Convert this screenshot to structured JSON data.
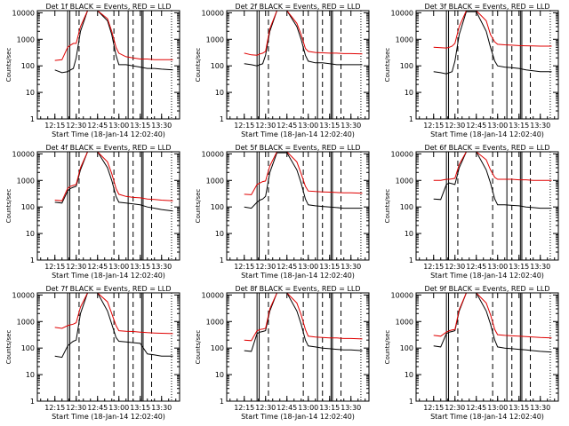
{
  "figure": {
    "colors": {
      "events": "#000000",
      "lld": "#e00000",
      "axis": "#000000"
    },
    "time_tick_labels": [
      "12:15",
      "12:30",
      "12:45",
      "13:00",
      "13:15",
      "13:30"
    ],
    "ylabel": "Counts/sec",
    "y_tick_labels": [
      "1",
      "10",
      "100",
      "1000",
      "10000"
    ]
  },
  "chart_data": [
    {
      "type": "line",
      "title": "Det 1f  BLACK = Events, RED = LLD",
      "xlabel": "Start Time (18-Jan-14 12:02:40)",
      "ylabel": "Counts/sec",
      "y_scale": "log",
      "ylim": [
        1,
        12000
      ],
      "xlim": [
        "12:02:40",
        "13:42:40"
      ],
      "x": [
        "12:15",
        "12:20",
        "12:24",
        "12:26",
        "12:28",
        "12:30",
        "12:33",
        "12:38",
        "12:45",
        "12:52",
        "12:55",
        "12:58",
        "13:00",
        "13:05",
        "13:10",
        "13:15",
        "13:20",
        "13:25",
        "13:30",
        "13:38"
      ],
      "series": [
        {
          "name": "Events",
          "values": [
            70,
            55,
            60,
            70,
            80,
            200,
            2000,
            12000,
            12000,
            5000,
            1500,
            250,
            110,
            110,
            100,
            90,
            80,
            80,
            75,
            70
          ]
        },
        {
          "name": "LLD",
          "values": [
            160,
            170,
            500,
            600,
            700,
            700,
            3000,
            12000,
            12000,
            6000,
            2000,
            500,
            300,
            220,
            200,
            180,
            180,
            170,
            170,
            170
          ]
        }
      ]
    },
    {
      "type": "line",
      "title": "Det 2f  BLACK = Events, RED = LLD",
      "xlabel": "Start Time (18-Jan-14 12:02:40)",
      "ylabel": "Counts/sec",
      "y_scale": "log",
      "ylim": [
        1,
        12000
      ],
      "xlim": [
        "12:02:40",
        "13:42:40"
      ],
      "x": [
        "12:15",
        "12:20",
        "12:24",
        "12:26",
        "12:28",
        "12:30",
        "12:33",
        "12:38",
        "12:45",
        "12:52",
        "12:55",
        "12:58",
        "13:00",
        "13:05",
        "13:10",
        "13:15",
        "13:20",
        "13:25",
        "13:30",
        "13:38"
      ],
      "series": [
        {
          "name": "Events",
          "values": [
            120,
            110,
            100,
            110,
            120,
            250,
            2000,
            12000,
            12000,
            3000,
            1000,
            250,
            150,
            130,
            130,
            120,
            110,
            110,
            110,
            110
          ]
        },
        {
          "name": "LLD",
          "values": [
            300,
            260,
            250,
            280,
            300,
            350,
            2500,
            12000,
            12000,
            4000,
            1500,
            450,
            350,
            320,
            310,
            300,
            300,
            290,
            290,
            280
          ]
        }
      ]
    },
    {
      "type": "line",
      "title": "Det 3f  BLACK = Events, RED = LLD",
      "xlabel": "Start Time (18-Jan-14 12:02:40)",
      "ylabel": "Counts/sec",
      "y_scale": "log",
      "ylim": [
        1,
        12000
      ],
      "xlim": [
        "12:02:40",
        "13:42:40"
      ],
      "x": [
        "12:15",
        "12:20",
        "12:24",
        "12:26",
        "12:28",
        "12:30",
        "12:33",
        "12:38",
        "12:45",
        "12:52",
        "12:55",
        "12:58",
        "13:00",
        "13:05",
        "13:10",
        "13:15",
        "13:20",
        "13:25",
        "13:30",
        "13:38"
      ],
      "series": [
        {
          "name": "Events",
          "values": [
            60,
            55,
            50,
            55,
            60,
            150,
            1500,
            11000,
            11000,
            2000,
            500,
            150,
            100,
            90,
            85,
            80,
            70,
            65,
            60,
            60
          ]
        },
        {
          "name": "LLD",
          "values": [
            500,
            480,
            470,
            500,
            550,
            700,
            3000,
            12000,
            12000,
            5000,
            1500,
            800,
            650,
            620,
            600,
            580,
            570,
            560,
            550,
            550
          ]
        }
      ]
    },
    {
      "type": "line",
      "title": "Det 4f  BLACK = Events, RED = LLD",
      "xlabel": "Start Time (18-Jan-14 12:02:40)",
      "ylabel": "Counts/sec",
      "y_scale": "log",
      "ylim": [
        1,
        12000
      ],
      "xlim": [
        "12:02:40",
        "13:42:40"
      ],
      "x": [
        "12:15",
        "12:20",
        "12:24",
        "12:26",
        "12:28",
        "12:30",
        "12:33",
        "12:38",
        "12:45",
        "12:52",
        "12:55",
        "12:58",
        "13:00",
        "13:05",
        "13:10",
        "13:15",
        "13:20",
        "13:25",
        "13:30",
        "13:38"
      ],
      "series": [
        {
          "name": "Events",
          "values": [
            150,
            140,
            400,
            500,
            550,
            600,
            2500,
            12000,
            12000,
            3000,
            1000,
            250,
            150,
            140,
            130,
            120,
            100,
            90,
            80,
            70
          ]
        },
        {
          "name": "LLD",
          "values": [
            180,
            170,
            500,
            600,
            650,
            700,
            3000,
            12000,
            12000,
            5000,
            1800,
            500,
            300,
            250,
            230,
            220,
            200,
            190,
            180,
            170
          ]
        }
      ]
    },
    {
      "type": "line",
      "title": "Det 5f  BLACK = Events, RED = LLD",
      "xlabel": "Start Time (18-Jan-14 12:02:40)",
      "ylabel": "Counts/sec",
      "y_scale": "log",
      "ylim": [
        1,
        12000
      ],
      "xlim": [
        "12:02:40",
        "13:42:40"
      ],
      "x": [
        "12:15",
        "12:20",
        "12:24",
        "12:26",
        "12:28",
        "12:30",
        "12:33",
        "12:38",
        "12:45",
        "12:52",
        "12:55",
        "12:58",
        "13:00",
        "13:05",
        "13:10",
        "13:15",
        "13:20",
        "13:25",
        "13:30",
        "13:38"
      ],
      "series": [
        {
          "name": "Events",
          "values": [
            100,
            90,
            150,
            180,
            200,
            250,
            2000,
            11000,
            11000,
            2500,
            800,
            200,
            120,
            110,
            105,
            100,
            95,
            90,
            90,
            90
          ]
        },
        {
          "name": "LLD",
          "values": [
            300,
            290,
            700,
            800,
            900,
            950,
            3500,
            12000,
            12000,
            5000,
            1800,
            600,
            400,
            380,
            370,
            360,
            350,
            340,
            340,
            330
          ]
        }
      ]
    },
    {
      "type": "line",
      "title": "Det 6f  BLACK = Events, RED = LLD",
      "xlabel": "Start Time (18-Jan-14 12:02:40)",
      "ylabel": "Counts/sec",
      "y_scale": "log",
      "ylim": [
        1,
        12000
      ],
      "xlim": [
        "12:02:40",
        "13:42:40"
      ],
      "x": [
        "12:15",
        "12:20",
        "12:24",
        "12:26",
        "12:28",
        "12:30",
        "12:33",
        "12:38",
        "12:45",
        "12:52",
        "12:55",
        "12:58",
        "13:00",
        "13:05",
        "13:10",
        "13:15",
        "13:20",
        "13:25",
        "13:30",
        "13:38"
      ],
      "series": [
        {
          "name": "Events",
          "values": [
            200,
            190,
            700,
            800,
            750,
            700,
            3000,
            12000,
            12000,
            2500,
            800,
            200,
            120,
            120,
            115,
            110,
            100,
            95,
            90,
            90
          ]
        },
        {
          "name": "LLD",
          "values": [
            1000,
            1000,
            1100,
            1100,
            1150,
            1200,
            4000,
            12000,
            12000,
            6000,
            2500,
            1300,
            1100,
            1100,
            1100,
            1050,
            1050,
            1000,
            1000,
            1000
          ]
        }
      ]
    },
    {
      "type": "line",
      "title": "Det 7f  BLACK = Events, RED = LLD",
      "xlabel": "Start Time (18-Jan-14 12:02:40)",
      "ylabel": "Counts/sec",
      "y_scale": "log",
      "ylim": [
        1,
        12000
      ],
      "xlim": [
        "12:02:40",
        "13:42:40"
      ],
      "x": [
        "12:15",
        "12:20",
        "12:24",
        "12:26",
        "12:28",
        "12:30",
        "12:33",
        "12:38",
        "12:45",
        "12:52",
        "12:55",
        "12:58",
        "13:00",
        "13:05",
        "13:10",
        "13:15",
        "13:20",
        "13:25",
        "13:30",
        "13:38"
      ],
      "series": [
        {
          "name": "Events",
          "values": [
            50,
            45,
            120,
            150,
            180,
            200,
            2000,
            12000,
            12000,
            2500,
            800,
            250,
            180,
            170,
            160,
            150,
            60,
            55,
            50,
            50
          ]
        },
        {
          "name": "LLD",
          "values": [
            600,
            550,
            700,
            750,
            800,
            900,
            3500,
            12000,
            12000,
            5500,
            2000,
            700,
            450,
            430,
            420,
            400,
            380,
            370,
            360,
            350
          ]
        }
      ]
    },
    {
      "type": "line",
      "title": "Det 8f  BLACK = Events, RED = LLD",
      "xlabel": "Start Time (18-Jan-14 12:02:40)",
      "ylabel": "Counts/sec",
      "y_scale": "log",
      "ylim": [
        1,
        12000
      ],
      "xlim": [
        "12:02:40",
        "13:42:40"
      ],
      "x": [
        "12:15",
        "12:20",
        "12:24",
        "12:26",
        "12:28",
        "12:30",
        "12:33",
        "12:38",
        "12:45",
        "12:52",
        "12:55",
        "12:58",
        "13:00",
        "13:05",
        "13:10",
        "13:15",
        "13:20",
        "13:25",
        "13:30",
        "13:38"
      ],
      "series": [
        {
          "name": "Events",
          "values": [
            80,
            75,
            350,
            400,
            420,
            450,
            2500,
            12000,
            12000,
            2500,
            800,
            200,
            120,
            110,
            100,
            95,
            90,
            85,
            85,
            80
          ]
        },
        {
          "name": "LLD",
          "values": [
            200,
            190,
            450,
            500,
            520,
            550,
            3000,
            12000,
            12000,
            5000,
            1800,
            500,
            280,
            260,
            250,
            240,
            240,
            230,
            230,
            220
          ]
        }
      ]
    },
    {
      "type": "line",
      "title": "Det 9f  BLACK = Events, RED = LLD",
      "xlabel": "Start Time (18-Jan-14 12:02:40)",
      "ylabel": "Counts/sec",
      "y_scale": "log",
      "ylim": [
        1,
        12000
      ],
      "xlim": [
        "12:02:40",
        "13:42:40"
      ],
      "x": [
        "12:15",
        "12:20",
        "12:24",
        "12:26",
        "12:28",
        "12:30",
        "12:33",
        "12:38",
        "12:45",
        "12:52",
        "12:55",
        "12:58",
        "13:00",
        "13:05",
        "13:10",
        "13:15",
        "13:20",
        "13:25",
        "13:30",
        "13:38"
      ],
      "series": [
        {
          "name": "Events",
          "values": [
            120,
            110,
            350,
            400,
            420,
            450,
            2500,
            12000,
            12000,
            2500,
            800,
            200,
            110,
            100,
            95,
            90,
            85,
            80,
            75,
            70
          ]
        },
        {
          "name": "LLD",
          "values": [
            300,
            280,
            400,
            450,
            480,
            500,
            2800,
            12000,
            12000,
            5000,
            1800,
            500,
            320,
            300,
            290,
            280,
            270,
            260,
            250,
            240
          ]
        }
      ]
    }
  ]
}
